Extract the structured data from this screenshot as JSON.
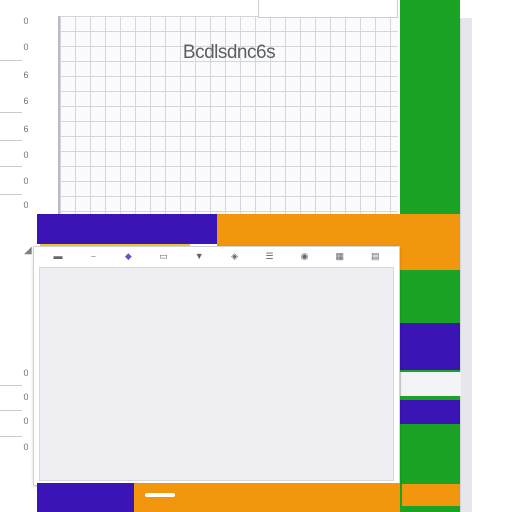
{
  "header": {
    "tab_label": ""
  },
  "chart": {
    "title": "Bcdlsdnc6s"
  },
  "axis": {
    "ticks": [
      "0",
      "0",
      "6",
      "6",
      "6",
      "0",
      "0",
      "0",
      "0",
      "0",
      "0",
      "0"
    ]
  },
  "toolbar": {
    "tools": [
      "pencil-tool",
      "line-tool",
      "crop-tool",
      "brush-tool",
      "rect-tool",
      "text-tool",
      "fill-tool",
      "layer-tool",
      "zoom-tool",
      "export-tool"
    ]
  },
  "side_chips": [
    "",
    "",
    "",
    "",
    ""
  ],
  "colors": {
    "green": "#1aa324",
    "purple": "#3a14b4",
    "orange": "#f2960e",
    "yellow": "#f1c82a"
  }
}
